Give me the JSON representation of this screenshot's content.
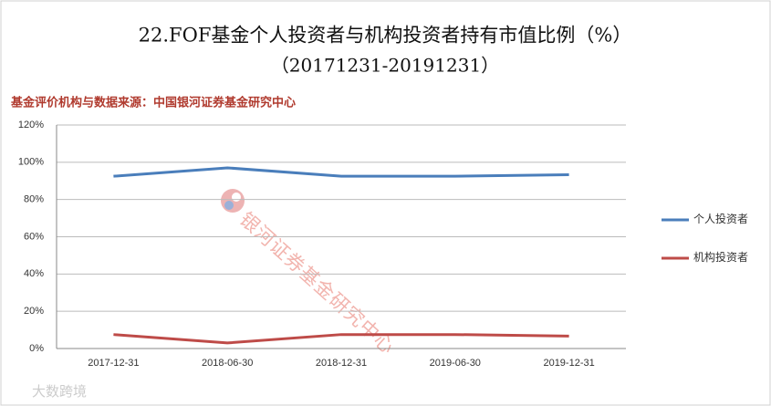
{
  "chart_data": {
    "type": "line",
    "title": "22.FOF基金个人投资者与机构投资者持有市值比例（%）",
    "subtitle": "（20171231-20191231）",
    "source": "基金评价机构与数据来源：中国银河证券基金研究中心",
    "watermark": "银河证券基金研究中心",
    "corner_mark": "大数跨境",
    "categories": [
      "2017-12-31",
      "2018-06-30",
      "2018-12-31",
      "2019-06-30",
      "2019-12-31"
    ],
    "series": [
      {
        "name": "个人投资者",
        "color": "#4a7ebb",
        "values": [
          92.5,
          97,
          92.5,
          92.5,
          93.3
        ]
      },
      {
        "name": "机构投资者",
        "color": "#be4b48",
        "values": [
          7.5,
          3,
          7.5,
          7.5,
          6.7
        ]
      }
    ],
    "ylim": [
      0,
      120
    ],
    "yticks": [
      {
        "value": 0,
        "label": "0%"
      },
      {
        "value": 20,
        "label": "20%"
      },
      {
        "value": 40,
        "label": "40%"
      },
      {
        "value": 60,
        "label": "60%"
      },
      {
        "value": 80,
        "label": "80%"
      },
      {
        "value": 100,
        "label": "100%"
      },
      {
        "value": 120,
        "label": "120%"
      }
    ],
    "grid": true,
    "legend": "right"
  }
}
